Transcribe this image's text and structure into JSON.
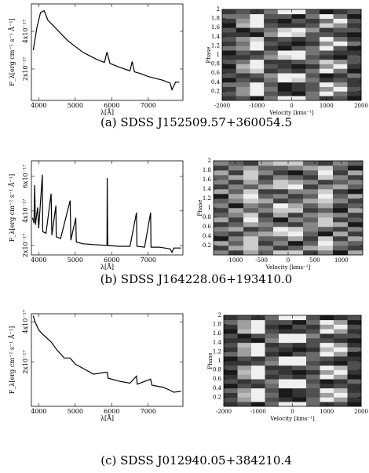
{
  "chart_data": [
    {
      "type": "line",
      "xlabel": "λ[Å]",
      "ylabel": "F_λ[erg cm⁻² s⁻¹ Å⁻¹]",
      "color": "#000000",
      "x": [
        3850,
        3950,
        4050,
        4150,
        4250,
        4400,
        4600,
        4800,
        5000,
        5200,
        5400,
        5600,
        5800,
        5870,
        5950,
        6200,
        6500,
        6560,
        6620,
        6800,
        7000,
        7200,
        7400,
        7600,
        7650,
        7750,
        7850
      ],
      "values": [
        3e-17,
        4.2e-17,
        5e-17,
        5.1e-17,
        4.6e-17,
        4.3e-17,
        3.9e-17,
        3.5e-17,
        3.2e-17,
        2.9e-17,
        2.7e-17,
        2.5e-17,
        2.35e-17,
        2.9e-17,
        2.3e-17,
        2.1e-17,
        1.9e-17,
        2.4e-17,
        1.85e-17,
        1.75e-17,
        1.6e-17,
        1.5e-17,
        1.4e-17,
        1.25e-17,
        9e-18,
        1.3e-17,
        1.3e-17
      ],
      "xlim": [
        3800,
        7950
      ],
      "ylim": [
        3.3e-18,
        5.46e-17
      ],
      "xticks": [
        4000,
        5000,
        6000,
        7000
      ],
      "yticks": [
        {
          "value": 2e-17,
          "label": "2x10⁻¹⁷"
        },
        {
          "value": 4e-17,
          "label": "4x10⁻¹⁷"
        }
      ]
    },
    {
      "type": "heatmap",
      "xlabel": "Velocity [kms⁻¹]",
      "ylabel": "Phase",
      "xlim": [
        -2000,
        2000
      ],
      "ylim": [
        0,
        2
      ],
      "xticks": [
        -2000,
        -1000,
        0,
        1000,
        2000
      ],
      "yticks": [
        0.2,
        0.4,
        0.6,
        0.8,
        1,
        1.2,
        1.4,
        1.6,
        1.8,
        2
      ],
      "z": [
        [
          3,
          4,
          2,
          5,
          9,
          9,
          5,
          3,
          4,
          2
        ],
        [
          4,
          6,
          9,
          4,
          3,
          2,
          5,
          9,
          5,
          3
        ],
        [
          3,
          6,
          9,
          5,
          2,
          3,
          4,
          6,
          9,
          4
        ],
        [
          5,
          5,
          9,
          4,
          2,
          3,
          4,
          9,
          6,
          3
        ],
        [
          2,
          4,
          3,
          5,
          9,
          8,
          5,
          3,
          4,
          3
        ],
        [
          4,
          3,
          4,
          6,
          9,
          9,
          4,
          2,
          3,
          5
        ],
        [
          3,
          6,
          8,
          3,
          4,
          3,
          5,
          9,
          5,
          2
        ],
        [
          2,
          7,
          9,
          4,
          3,
          2,
          3,
          6,
          9,
          3
        ],
        [
          4,
          5,
          9,
          3,
          3,
          4,
          5,
          8,
          6,
          4
        ],
        [
          3,
          3,
          4,
          6,
          8,
          9,
          4,
          3,
          2,
          4
        ],
        [
          2,
          4,
          3,
          5,
          9,
          9,
          5,
          4,
          3,
          3
        ],
        [
          5,
          6,
          9,
          3,
          2,
          4,
          5,
          9,
          4,
          2
        ],
        [
          3,
          5,
          9,
          4,
          3,
          2,
          3,
          6,
          9,
          5
        ],
        [
          4,
          6,
          8,
          3,
          4,
          3,
          4,
          9,
          5,
          3
        ],
        [
          3,
          3,
          2,
          6,
          9,
          8,
          4,
          4,
          3,
          2
        ],
        [
          4,
          2,
          4,
          5,
          8,
          9,
          6,
          3,
          4,
          4
        ],
        [
          2,
          7,
          9,
          4,
          3,
          3,
          4,
          8,
          6,
          3
        ],
        [
          3,
          6,
          9,
          3,
          2,
          4,
          3,
          5,
          9,
          4
        ],
        [
          5,
          5,
          9,
          4,
          4,
          2,
          5,
          9,
          5,
          2
        ],
        [
          3,
          4,
          3,
          5,
          9,
          9,
          4,
          2,
          3,
          4
        ]
      ]
    },
    {
      "type": "line",
      "xlabel": "λ[Å]",
      "ylabel": "F_λ[erg cm⁻² s⁻¹ Å⁻¹]",
      "color": "#000000",
      "x": [
        3830,
        3870,
        3890,
        3910,
        3970,
        4000,
        4100,
        4110,
        4200,
        4340,
        4360,
        4471,
        4480,
        4600,
        4861,
        4880,
        5015,
        5030,
        5200,
        5500,
        5870,
        5876,
        5890,
        6200,
        6500,
        6678,
        6690,
        6900,
        7065,
        7075,
        7300,
        7600,
        7650,
        7700,
        7900
      ],
      "values": [
        3.6e-17,
        3.3e-17,
        5.5e-17,
        3.2e-17,
        4.2e-17,
        3e-17,
        6.1e-17,
        2.8e-17,
        2.7e-17,
        5e-17,
        2.6e-17,
        4.3e-17,
        2.5e-17,
        2.4e-17,
        4.6e-17,
        2.3e-17,
        3.6e-17,
        2.2e-17,
        2.1e-17,
        2.05e-17,
        2e-17,
        5.9e-17,
        2e-17,
        1.95e-17,
        1.95e-17,
        3.9e-17,
        1.95e-17,
        1.9e-17,
        3.9e-17,
        1.9e-17,
        1.9e-17,
        1.8e-17,
        1.6e-17,
        1.85e-17,
        1.85e-17
      ],
      "xlim": [
        3800,
        7950
      ],
      "ylim": [
        1.45e-17,
        6.9e-17
      ],
      "xticks": [
        4000,
        5000,
        6000,
        7000
      ],
      "yticks": [
        {
          "value": 2e-17,
          "label": "2x10⁻¹⁷"
        },
        {
          "value": 4e-17,
          "label": "4x10⁻¹⁷"
        },
        {
          "value": 6e-17,
          "label": "6x10⁻¹⁷"
        }
      ]
    },
    {
      "type": "heatmap",
      "xlabel": "Velocity [kms⁻¹]",
      "ylabel": "Phase",
      "xlim": [
        -1400,
        1400
      ],
      "ylim": [
        0,
        2
      ],
      "xticks": [
        -1000,
        -500,
        0,
        500,
        1000
      ],
      "yticks": [
        0.2,
        0.4,
        0.6,
        0.8,
        1,
        1.2,
        1.4,
        1.6,
        1.8,
        2
      ],
      "z": [
        [
          5,
          3,
          6,
          4,
          7,
          7,
          3,
          5,
          2,
          6
        ],
        [
          3,
          6,
          7,
          5,
          3,
          4,
          6,
          7,
          4,
          3
        ],
        [
          6,
          4,
          7,
          3,
          5,
          2,
          4,
          8,
          5,
          4
        ],
        [
          2,
          5,
          7,
          4,
          4,
          6,
          3,
          7,
          3,
          6
        ],
        [
          4,
          3,
          5,
          6,
          7,
          8,
          4,
          2,
          6,
          3
        ],
        [
          5,
          6,
          3,
          4,
          8,
          7,
          5,
          4,
          3,
          5
        ],
        [
          3,
          4,
          6,
          5,
          4,
          3,
          5,
          7,
          6,
          2
        ],
        [
          6,
          3,
          8,
          4,
          2,
          5,
          4,
          7,
          3,
          4
        ],
        [
          4,
          5,
          7,
          3,
          6,
          3,
          5,
          6,
          5,
          3
        ],
        [
          3,
          6,
          4,
          5,
          7,
          7,
          3,
          4,
          2,
          6
        ],
        [
          5,
          2,
          5,
          4,
          8,
          6,
          4,
          6,
          3,
          4
        ],
        [
          4,
          5,
          7,
          6,
          3,
          4,
          6,
          7,
          5,
          3
        ],
        [
          2,
          6,
          8,
          4,
          5,
          3,
          4,
          8,
          4,
          6
        ],
        [
          6,
          4,
          7,
          3,
          3,
          5,
          5,
          7,
          3,
          2
        ],
        [
          3,
          5,
          4,
          6,
          7,
          8,
          3,
          5,
          6,
          4
        ],
        [
          5,
          3,
          6,
          4,
          7,
          6,
          5,
          3,
          4,
          5
        ],
        [
          4,
          6,
          7,
          3,
          5,
          4,
          3,
          7,
          5,
          3
        ],
        [
          6,
          3,
          7,
          5,
          3,
          2,
          4,
          8,
          3,
          6
        ],
        [
          3,
          5,
          6,
          4,
          4,
          5,
          6,
          7,
          4,
          2
        ],
        [
          5,
          4,
          3,
          6,
          7,
          7,
          4,
          3,
          5,
          4
        ]
      ]
    },
    {
      "type": "line",
      "xlabel": "λ[Å]",
      "ylabel": "F_λ[erg cm⁻² s⁻¹ Å⁻¹]",
      "color": "#000000",
      "x": [
        3850,
        3900,
        4000,
        4100,
        4340,
        4500,
        4700,
        4861,
        5000,
        5200,
        5500,
        5876,
        5900,
        6200,
        6500,
        6678,
        6700,
        7065,
        7100,
        7400,
        7600,
        7700,
        7900
      ],
      "values": [
        4.3e-17,
        4e-17,
        3.6e-17,
        3.4e-17,
        3e-17,
        2.6e-17,
        2.2e-17,
        2.2e-17,
        1.9e-17,
        1.7e-17,
        1.4e-17,
        1.5e-17,
        1.2e-17,
        1.05e-17,
        9.5e-18,
        1.3e-17,
        9e-18,
        1.15e-17,
        8.5e-18,
        7.5e-18,
        6e-18,
        5e-18,
        5.5e-18
      ],
      "xlim": [
        3800,
        7950
      ],
      "ylim": [
        -2e-18,
        4.4e-17
      ],
      "xticks": [
        4000,
        5000,
        6000,
        7000
      ],
      "yticks": [
        {
          "value": 2e-17,
          "label": "2x10⁻¹⁷"
        },
        {
          "value": 4e-17,
          "label": "4x10⁻¹⁷"
        }
      ]
    },
    {
      "type": "heatmap",
      "xlabel": "Velocity [kms⁻¹]",
      "ylabel": "Phase",
      "xlim": [
        -2000,
        2000
      ],
      "ylim": [
        0,
        2
      ],
      "xticks": [
        -2000,
        -1000,
        0,
        1000,
        2000
      ],
      "yticks": [
        0.2,
        0.4,
        0.6,
        0.8,
        1,
        1.2,
        1.4,
        1.6,
        1.8,
        2
      ],
      "z": [
        [
          2,
          3,
          1,
          4,
          9,
          9,
          4,
          2,
          3,
          1
        ],
        [
          3,
          6,
          9,
          3,
          2,
          1,
          4,
          9,
          6,
          2
        ],
        [
          2,
          7,
          9,
          4,
          1,
          2,
          3,
          6,
          9,
          3
        ],
        [
          4,
          6,
          9,
          3,
          1,
          2,
          3,
          9,
          7,
          2
        ],
        [
          1,
          3,
          2,
          4,
          9,
          9,
          4,
          2,
          3,
          2
        ],
        [
          3,
          2,
          3,
          5,
          9,
          9,
          3,
          1,
          2,
          4
        ],
        [
          2,
          6,
          9,
          2,
          3,
          2,
          4,
          9,
          6,
          1
        ],
        [
          1,
          7,
          9,
          3,
          2,
          1,
          2,
          6,
          9,
          2
        ],
        [
          3,
          6,
          9,
          2,
          2,
          3,
          4,
          9,
          7,
          3
        ],
        [
          2,
          2,
          3,
          5,
          9,
          9,
          3,
          2,
          1,
          3
        ],
        [
          1,
          3,
          2,
          4,
          9,
          9,
          4,
          3,
          2,
          2
        ],
        [
          4,
          6,
          9,
          2,
          1,
          3,
          4,
          9,
          6,
          1
        ],
        [
          2,
          6,
          9,
          3,
          2,
          1,
          2,
          7,
          9,
          4
        ],
        [
          3,
          7,
          9,
          2,
          3,
          2,
          3,
          9,
          6,
          2
        ],
        [
          2,
          2,
          1,
          5,
          9,
          9,
          3,
          3,
          2,
          1
        ],
        [
          3,
          1,
          3,
          4,
          9,
          9,
          5,
          2,
          3,
          3
        ],
        [
          1,
          7,
          9,
          3,
          2,
          2,
          3,
          9,
          6,
          2
        ],
        [
          2,
          6,
          9,
          2,
          1,
          3,
          2,
          6,
          9,
          3
        ],
        [
          4,
          6,
          9,
          3,
          3,
          1,
          4,
          9,
          6,
          1
        ],
        [
          2,
          3,
          2,
          4,
          9,
          9,
          3,
          1,
          2,
          3
        ]
      ]
    }
  ],
  "captions": [
    "(a) SDSS J152509.57+360054.5",
    "(b) SDSS J164228.06+193410.0",
    "(c) SDSS J012940.05+384210.4"
  ]
}
